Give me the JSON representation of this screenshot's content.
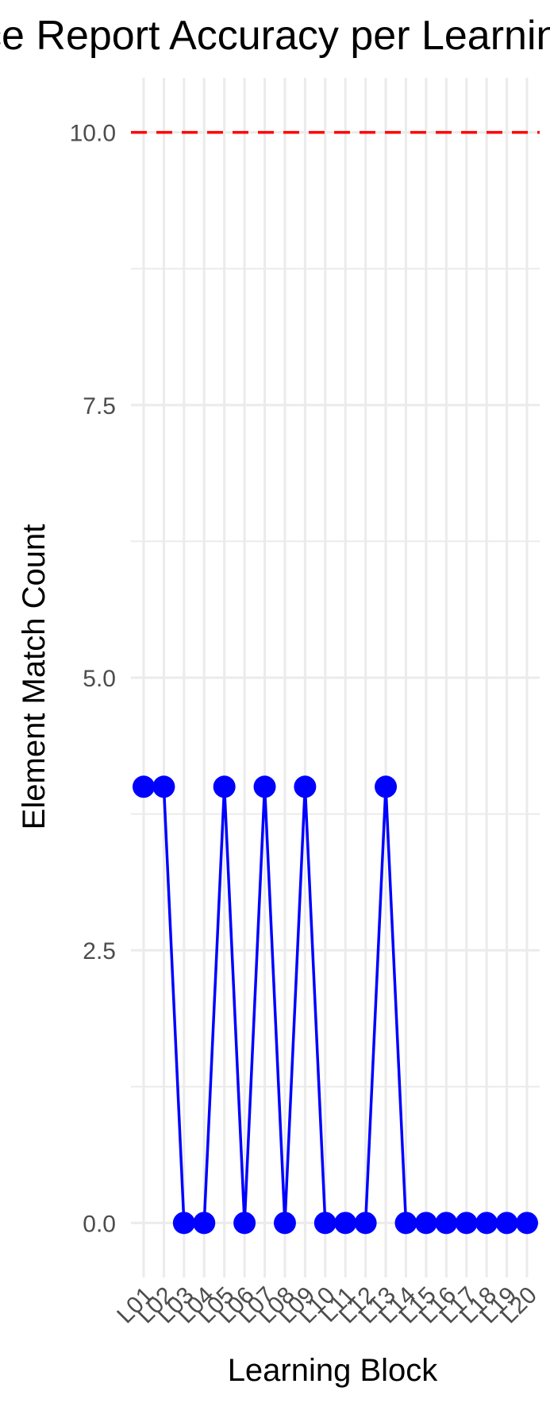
{
  "chart_data": {
    "type": "line",
    "title": "Evidence Report Accuracy per Learning Block",
    "xlabel": "Learning Block",
    "ylabel": "Element Match Count",
    "categories": [
      "L01",
      "L02",
      "L03",
      "L04",
      "L05",
      "L06",
      "L07",
      "L08",
      "L09",
      "L10",
      "L11",
      "L12",
      "L13",
      "L14",
      "L15",
      "L16",
      "L17",
      "L18",
      "L19",
      "L20"
    ],
    "series": [
      {
        "values": [
          4,
          4,
          0,
          0,
          4,
          0,
          4,
          0,
          4,
          0,
          0,
          0,
          4,
          0,
          0,
          0,
          0,
          0,
          0,
          0
        ]
      }
    ],
    "ylim": [
      -0.5,
      10.5
    ],
    "yticks": [
      "0.0",
      "2.5",
      "5.0",
      "7.5",
      "10.0"
    ],
    "reference_line": {
      "y": 10,
      "style": "dashed"
    },
    "grid": true,
    "legend": "none",
    "colors": {
      "series": "#0000ff",
      "reference": "#ff0000",
      "grid": "#ebebeb"
    }
  }
}
